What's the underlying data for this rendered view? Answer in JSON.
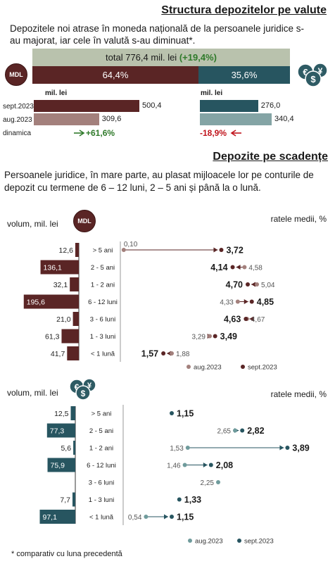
{
  "section1": {
    "title": "Structura depozitelor pe valute",
    "description": "Depozitele noi atrase în moneda națională de la persoanele juridice s-au majorat, iar cele în valută s-au diminuat*.",
    "total_label": "total 776,4 mil. lei",
    "total_change": "(+19,4%)",
    "mdl_share": "64,4%",
    "fx_share": "35,6%",
    "mdl_badge": "MDL",
    "unit_label_left": "mil. lei",
    "unit_label_right": "mil. lei",
    "row_labels": [
      "sept.2023",
      "aug.2023",
      "dinamica"
    ],
    "mdl_sept": 500.4,
    "mdl_aug": 309.6,
    "fx_sept": 276.0,
    "fx_aug": 340.4,
    "mdl_sept_label": "500,4",
    "mdl_aug_label": "309,6",
    "fx_sept_label": "276,0",
    "fx_aug_label": "340,4",
    "mdl_dynamic": "+61,6%",
    "fx_dynamic": "-18,9%"
  },
  "section2": {
    "title": "Depozite pe scadențe",
    "description": "Persoanele juridice, în mare parte, au plasat mijloacele lor pe conturile de depozit cu termene de 6 – 12 luni, 2 – 5 ani și până la o lună."
  },
  "chart_data": [
    {
      "type": "bar",
      "currency": "MDL",
      "ylabel": "volum, mil. lei",
      "rates_label": "ratele medii, %",
      "categories": [
        "> 5 ani",
        "2 - 5 ani",
        "1 - 2 ani",
        "6 - 12 luni",
        "3 - 6 luni",
        "1 - 3 luni",
        "< 1 lună"
      ],
      "volume": [
        12.6,
        136.1,
        32.1,
        195.6,
        21.0,
        61.3,
        41.7
      ],
      "volume_labels": [
        "12,6",
        "136,1",
        "32,1",
        "195,6",
        "21,0",
        "61,3",
        "41,7"
      ],
      "rate_aug": [
        0.1,
        4.58,
        5.04,
        4.33,
        4.67,
        3.29,
        1.88
      ],
      "rate_sept": [
        3.72,
        4.14,
        4.7,
        4.85,
        4.63,
        3.49,
        1.57
      ],
      "rate_aug_labels": [
        "0,10",
        "4,58",
        "5,04",
        "4,33",
        "4,67",
        "3,29",
        "1,88"
      ],
      "rate_sept_labels": [
        "3,72",
        "4,14",
        "4,70",
        "4,85",
        "4,63",
        "3,49",
        "1,57"
      ],
      "legend": [
        "aug.2023",
        "sept.2023"
      ]
    },
    {
      "type": "bar",
      "currency": "FX",
      "ylabel": "volum, mil. lei",
      "rates_label": "ratele medii, %",
      "categories": [
        "> 5 ani",
        "2 - 5 ani",
        "1 - 2 ani",
        "6 - 12 luni",
        "3 - 6 luni",
        "1 - 3 luni",
        "< 1 lună"
      ],
      "volume": [
        12.5,
        77.3,
        5.6,
        75.9,
        null,
        7.7,
        97.1
      ],
      "volume_labels": [
        "12,5",
        "77,3",
        "5,6",
        "75,9",
        "",
        "7,7",
        "97,1"
      ],
      "rate_aug": [
        null,
        2.65,
        1.53,
        1.46,
        2.25,
        null,
        0.54
      ],
      "rate_sept": [
        1.15,
        2.82,
        3.89,
        2.08,
        null,
        1.33,
        1.15
      ],
      "rate_aug_labels": [
        "",
        "2,65",
        "1,53",
        "1,46",
        "2,25",
        "",
        "0,54"
      ],
      "rate_sept_labels": [
        "1,15",
        "2,82",
        "3,89",
        "2,08",
        "",
        "1,33",
        "1,15"
      ],
      "legend": [
        "aug.2023",
        "sept.2023"
      ]
    }
  ],
  "footnote": "* comparativ cu luna precedentă",
  "colors": {
    "mdl_dark": "#5a2525",
    "mdl_light": "#a3807c",
    "fx_dark": "#275560",
    "fx_light": "#84a4a5",
    "total_bar": "#b9c2ad",
    "positive": "#2f7a2a",
    "negative": "#c0141c"
  },
  "icons": [
    "euro-dollar-yen-icon",
    "arrow-right-icon",
    "arrow-left-icon"
  ]
}
